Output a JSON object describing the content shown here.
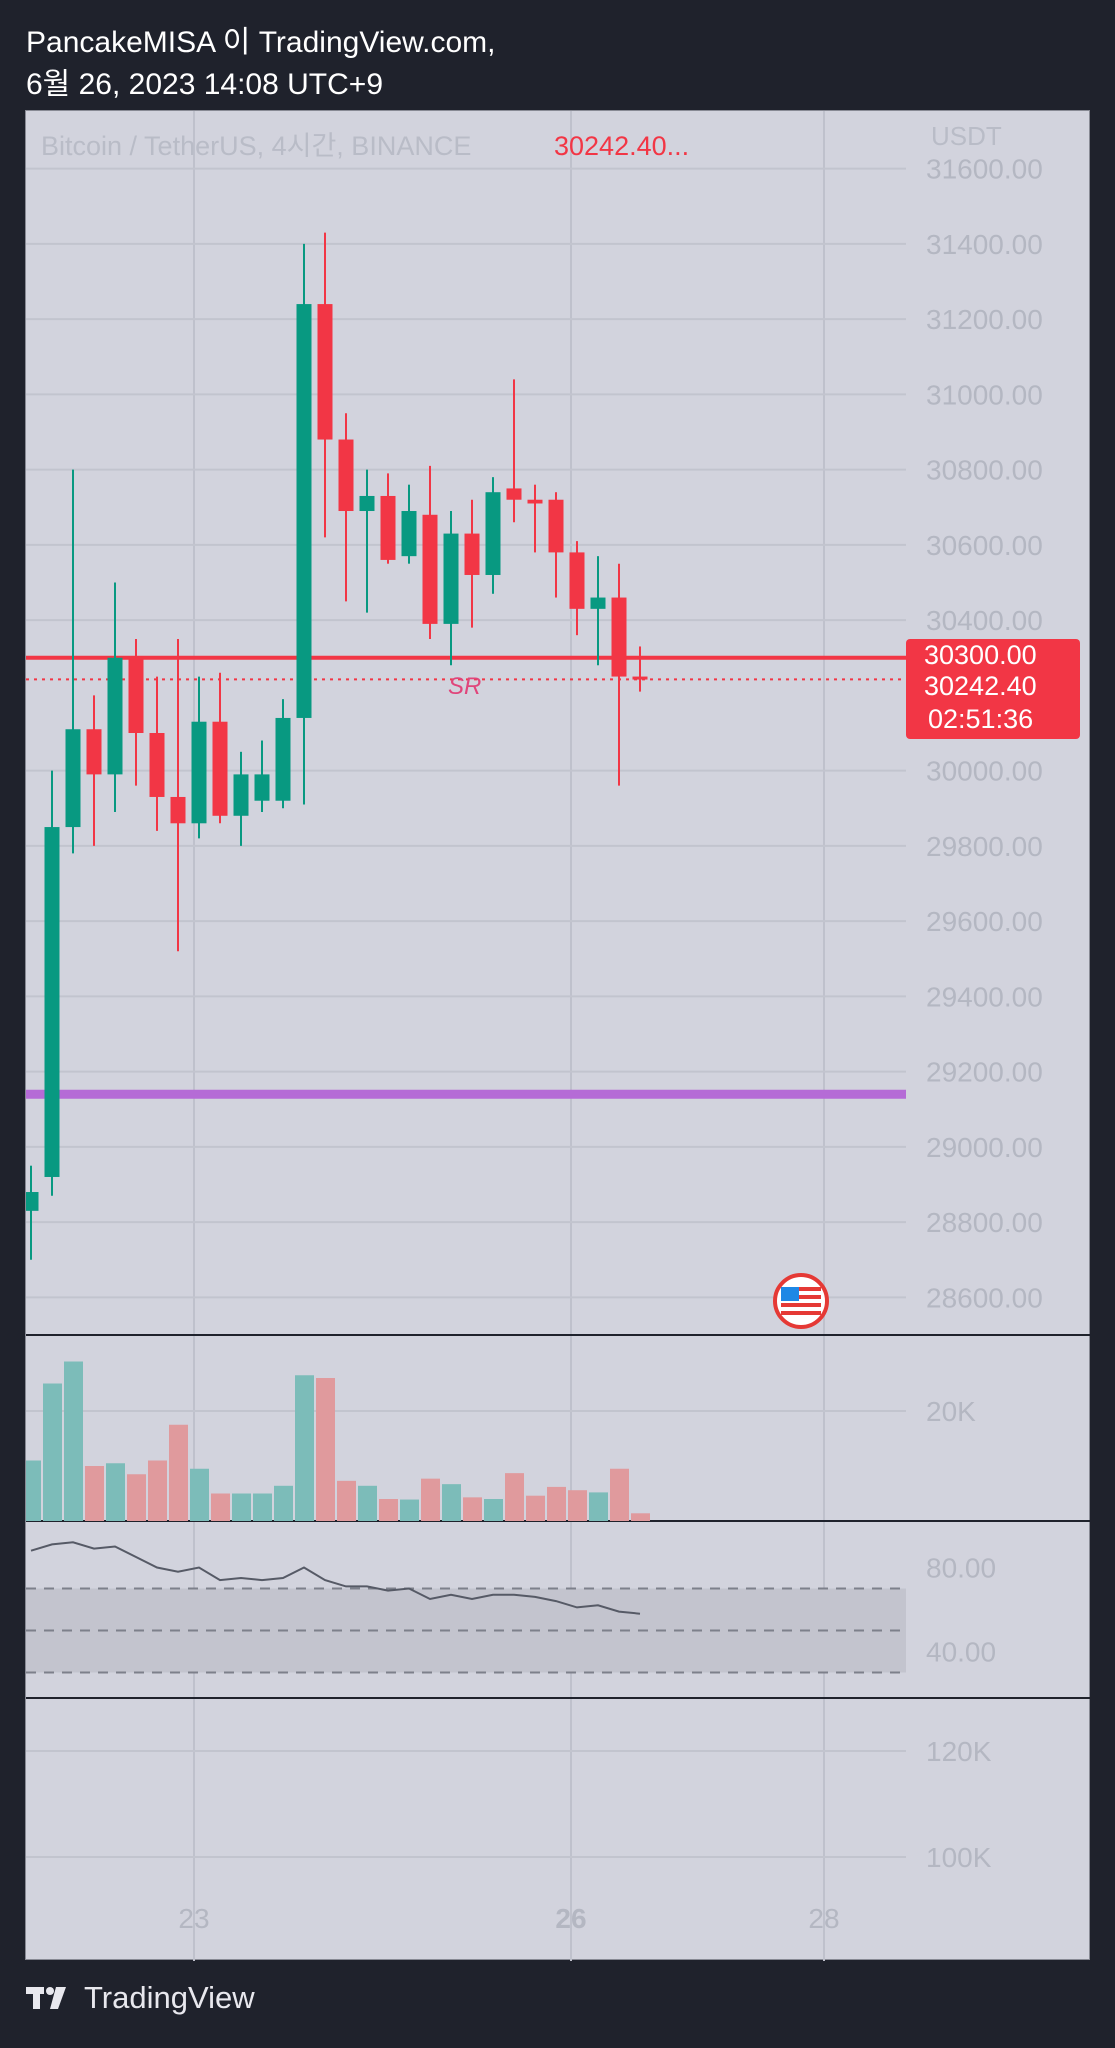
{
  "header": {
    "line1": "PancakeMISA 이 TradingView.com,",
    "line2": "6월 26, 2023 14:08 UTC+9"
  },
  "footer": {
    "brand": "TradingView"
  },
  "chart_data": {
    "type": "candlestick",
    "symbol_line": "Bitcoin / TetherUS, 4시간, BINANCE",
    "last_price_text": "30242.40...",
    "currency": "USDT",
    "ylim": [
      28500,
      31700
    ],
    "yticks": [
      31600,
      31400,
      31200,
      31000,
      30800,
      30600,
      30400,
      30300,
      30000,
      29800,
      29600,
      29400,
      29200,
      29000,
      28800,
      28600
    ],
    "ytick_labels": [
      "31600.00",
      "31400.00",
      "31200.00",
      "31000.00",
      "30800.00",
      "30600.00",
      "30400.00",
      "30300.00",
      "30000.00",
      "29800.00",
      "29600.00",
      "29400.00",
      "29200.00",
      "29000.00",
      "28800.00",
      "28600.00"
    ],
    "x_labels": [
      "23",
      "26",
      "28"
    ],
    "grid": true,
    "candles": [
      {
        "o": 28830,
        "h": 28950,
        "c": 28880,
        "l": 28700
      },
      {
        "o": 28920,
        "h": 30000,
        "c": 29850,
        "l": 28870
      },
      {
        "o": 29850,
        "h": 30800,
        "c": 30110,
        "l": 29780
      },
      {
        "o": 30110,
        "h": 30200,
        "c": 29990,
        "l": 29800
      },
      {
        "o": 29990,
        "h": 30500,
        "c": 30300,
        "l": 29890
      },
      {
        "o": 30300,
        "h": 30350,
        "c": 30100,
        "l": 29960
      },
      {
        "o": 30100,
        "h": 30250,
        "c": 29930,
        "l": 29840
      },
      {
        "o": 29930,
        "h": 30350,
        "c": 29860,
        "l": 29520
      },
      {
        "o": 29860,
        "h": 30250,
        "c": 30130,
        "l": 29820
      },
      {
        "o": 30130,
        "h": 30260,
        "c": 29880,
        "l": 29860
      },
      {
        "o": 29880,
        "h": 30050,
        "c": 29990,
        "l": 29800
      },
      {
        "o": 29920,
        "h": 30080,
        "c": 29990,
        "l": 29890
      },
      {
        "o": 29920,
        "h": 30190,
        "c": 30140,
        "l": 29900
      },
      {
        "o": 30140,
        "h": 31400,
        "c": 31240,
        "l": 29910
      },
      {
        "o": 31240,
        "h": 31430,
        "c": 30880,
        "l": 30620
      },
      {
        "o": 30880,
        "h": 30950,
        "c": 30690,
        "l": 30450
      },
      {
        "o": 30690,
        "h": 30800,
        "c": 30730,
        "l": 30420
      },
      {
        "o": 30730,
        "h": 30790,
        "c": 30560,
        "l": 30550
      },
      {
        "o": 30570,
        "h": 30760,
        "c": 30690,
        "l": 30550
      },
      {
        "o": 30680,
        "h": 30810,
        "c": 30390,
        "l": 30350
      },
      {
        "o": 30390,
        "h": 30690,
        "c": 30630,
        "l": 30280
      },
      {
        "o": 30630,
        "h": 30720,
        "c": 30520,
        "l": 30380
      },
      {
        "o": 30520,
        "h": 30780,
        "c": 30740,
        "l": 30470
      },
      {
        "o": 30750,
        "h": 31040,
        "c": 30720,
        "l": 30660
      },
      {
        "o": 30720,
        "h": 30760,
        "c": 30710,
        "l": 30580
      },
      {
        "o": 30720,
        "h": 30740,
        "c": 30580,
        "l": 30460
      },
      {
        "o": 30580,
        "h": 30610,
        "c": 30430,
        "l": 30360
      },
      {
        "o": 30430,
        "h": 30570,
        "c": 30460,
        "l": 30280
      },
      {
        "o": 30460,
        "h": 30550,
        "c": 30250,
        "l": 29960
      },
      {
        "o": 30250,
        "h": 30330,
        "c": 30242.4,
        "l": 30210
      }
    ],
    "horizontal_lines": [
      {
        "price": 30300,
        "color": "#f23645",
        "style": "solid"
      },
      {
        "price": 30242.4,
        "color": "#f23645",
        "style": "dotted"
      },
      {
        "price": 29140,
        "color": "#b56bd6",
        "style": "solid"
      }
    ],
    "sr_label": "SR",
    "price_box": {
      "price": "30242.40",
      "countdown": "02:51:36",
      "covered_label": "30300.00"
    },
    "volume": {
      "ytick_labels": [
        "20K"
      ],
      "values": [
        11000,
        25000,
        29000,
        10000,
        10500,
        8500,
        11000,
        17500,
        9500,
        5000,
        5000,
        5000,
        6400,
        26500,
        26000,
        7300,
        6400,
        4000,
        3900,
        7700,
        6700,
        4300,
        4000,
        8700,
        4600,
        6200,
        5600,
        5200,
        9500,
        1400
      ]
    },
    "rsi": {
      "ytick_labels": [
        "80.00",
        "40.00"
      ],
      "band": [
        30,
        70
      ],
      "values": [
        88,
        91,
        92,
        89,
        90,
        85,
        80,
        78,
        80,
        74,
        75,
        74,
        75,
        80,
        74,
        71,
        71,
        69,
        70,
        65,
        67,
        65,
        67,
        67,
        66,
        64,
        61,
        62,
        59,
        58
      ]
    },
    "bottom_pane": {
      "ytick_labels": [
        "120K",
        "100K"
      ]
    },
    "event_flag": "us-flag-icon",
    "colors": {
      "up": "#089981",
      "down": "#f23645",
      "vol_up": "#7cbcb9",
      "vol_down": "#e09a9d",
      "rsi_line": "#565a66",
      "rsi_band": "#c3c4ce",
      "purple_line": "#b56bd6"
    }
  }
}
